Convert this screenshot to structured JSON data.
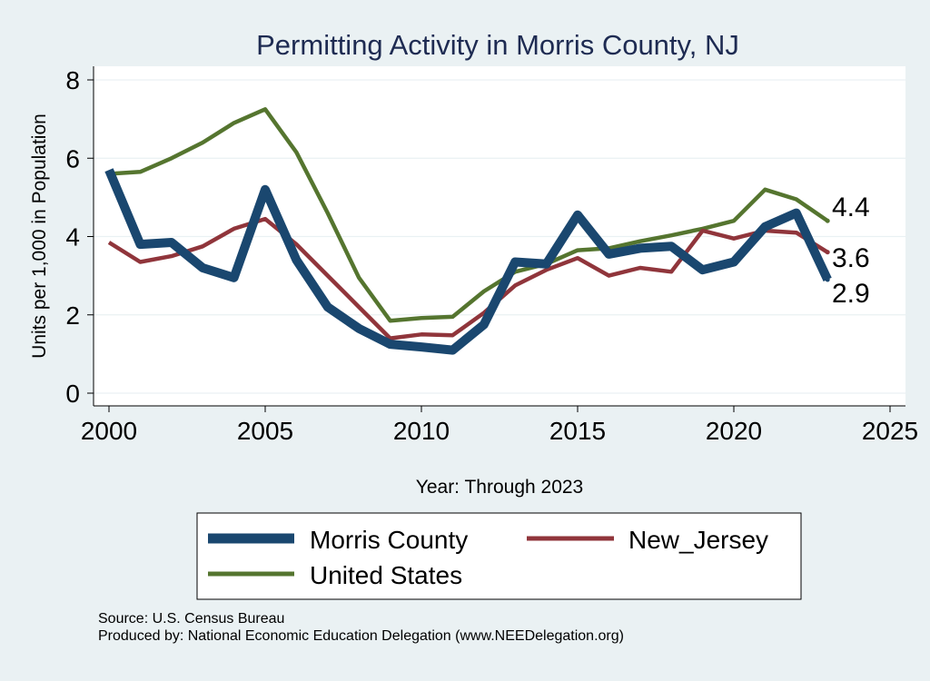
{
  "chart_data": {
    "type": "line",
    "title": "Permitting Activity in Morris County, NJ",
    "xlabel": "Year: Through 2023",
    "ylabel": "Units per 1,000 in Population",
    "xlim": [
      2000,
      2025
    ],
    "ylim": [
      0,
      8
    ],
    "xticks": [
      2000,
      2005,
      2010,
      2015,
      2020,
      2025
    ],
    "yticks": [
      0,
      2,
      4,
      6,
      8
    ],
    "grid": true,
    "legend_position": "bottom",
    "x": [
      2000,
      2001,
      2002,
      2003,
      2004,
      2005,
      2006,
      2007,
      2008,
      2009,
      2010,
      2011,
      2012,
      2013,
      2014,
      2015,
      2016,
      2017,
      2018,
      2019,
      2020,
      2021,
      2022,
      2023
    ],
    "series": [
      {
        "name": "Morris County",
        "color": "#1a476f",
        "values": [
          5.7,
          3.8,
          3.85,
          3.2,
          2.95,
          5.2,
          3.4,
          2.2,
          1.65,
          1.25,
          1.18,
          1.1,
          1.75,
          3.35,
          3.3,
          4.55,
          3.55,
          3.7,
          3.75,
          3.15,
          3.35,
          4.25,
          4.6,
          2.9
        ],
        "end_label": "2.9"
      },
      {
        "name": "New_Jersey",
        "color": "#90353b",
        "values": [
          3.85,
          3.35,
          3.5,
          3.75,
          4.2,
          4.45,
          3.8,
          3.0,
          2.2,
          1.4,
          1.5,
          1.48,
          2.05,
          2.75,
          3.15,
          3.45,
          3.0,
          3.2,
          3.1,
          4.15,
          3.95,
          4.15,
          4.1,
          3.6
        ],
        "end_label": "3.6"
      },
      {
        "name": "United States",
        "color": "#55752f",
        "values": [
          5.6,
          5.65,
          6.0,
          6.4,
          6.9,
          7.25,
          6.15,
          4.6,
          2.95,
          1.85,
          1.92,
          1.95,
          2.6,
          3.1,
          3.3,
          3.65,
          3.7,
          3.88,
          4.03,
          4.2,
          4.4,
          5.2,
          4.95,
          4.4
        ],
        "end_label": "4.4"
      }
    ]
  },
  "footer": {
    "source": "Source: U.S. Census Bureau",
    "produced_by": "Produced by: National Economic Education Delegation (www.NEEDelegation.org)"
  }
}
